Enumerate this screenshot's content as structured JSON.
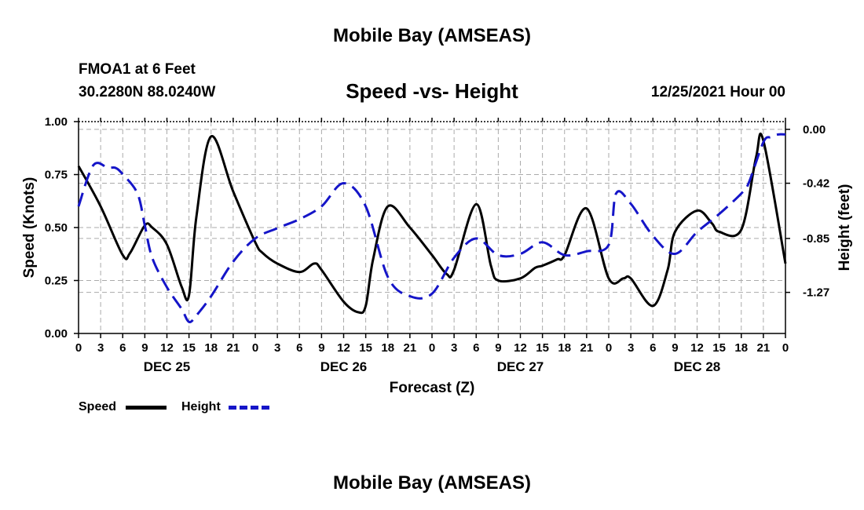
{
  "page": {
    "title": "Mobile Bay (AMSEAS)",
    "station": "FMOA1 at 6 Feet",
    "coords": "30.2280N  88.0240W",
    "chart_title": "Speed -vs- Height",
    "run_time": "12/25/2021 Hour 00",
    "legend": {
      "speed_label": "Speed",
      "height_label": "Height"
    },
    "footer_title": "Mobile Bay (AMSEAS)"
  },
  "colors": {
    "speed": "#000000",
    "height": "#1515c8",
    "grid": "#aaaaaa"
  },
  "chart_data": {
    "type": "line",
    "title": "Speed -vs- Height",
    "xlabel": "Forecast (Z)",
    "ylabel": "Speed (Knots)",
    "y2label": "Height (feet)",
    "xlim": [
      0,
      96
    ],
    "ylim": [
      0,
      1
    ],
    "y2lim": [
      -1.59,
      0.06
    ],
    "x_ticks": [
      0,
      3,
      6,
      9,
      12,
      15,
      18,
      21,
      24,
      27,
      30,
      33,
      36,
      39,
      42,
      45,
      48,
      51,
      54,
      57,
      60,
      63,
      66,
      69,
      72,
      75,
      78,
      81,
      84,
      87,
      90,
      93,
      96
    ],
    "x_tick_labels": [
      "0",
      "3",
      "6",
      "9",
      "12",
      "15",
      "18",
      "21",
      "0",
      "3",
      "6",
      "9",
      "12",
      "15",
      "18",
      "21",
      "0",
      "3",
      "6",
      "9",
      "12",
      "15",
      "18",
      "21",
      "0",
      "3",
      "6",
      "9",
      "12",
      "15",
      "18",
      "21",
      "0"
    ],
    "y_ticks": [
      0,
      0.25,
      0.5,
      0.75,
      1
    ],
    "y_tick_labels": [
      "0.00",
      "0.25",
      "0.50",
      "0.75",
      "1.00"
    ],
    "y2_ticks": [
      -1.27,
      -0.85,
      -0.42,
      0
    ],
    "y2_tick_labels": [
      "-1.27",
      "-0.85",
      "-0.42",
      "0.00"
    ],
    "day_labels": [
      {
        "x": 12,
        "label": "DEC 25"
      },
      {
        "x": 36,
        "label": "DEC 26"
      },
      {
        "x": 60,
        "label": "DEC 27"
      },
      {
        "x": 84,
        "label": "DEC 28"
      }
    ],
    "series": [
      {
        "name": "Speed",
        "axis": "left",
        "style": "solid",
        "x": [
          0,
          3,
          6,
          7,
          9,
          10,
          12,
          14,
          15,
          16,
          18,
          21,
          24,
          25,
          27,
          30,
          32,
          33,
          36,
          38,
          39,
          40,
          42,
          45,
          48,
          50,
          51,
          54,
          56,
          57,
          60,
          62,
          63,
          65,
          66,
          69,
          72,
          74,
          75,
          78,
          80,
          81,
          84,
          86,
          87,
          90,
          92,
          93,
          96
        ],
        "y": [
          0.79,
          0.6,
          0.37,
          0.38,
          0.51,
          0.5,
          0.42,
          0.22,
          0.18,
          0.55,
          0.93,
          0.67,
          0.43,
          0.38,
          0.33,
          0.29,
          0.33,
          0.3,
          0.15,
          0.1,
          0.13,
          0.35,
          0.6,
          0.5,
          0.37,
          0.28,
          0.3,
          0.61,
          0.32,
          0.25,
          0.26,
          0.31,
          0.32,
          0.35,
          0.37,
          0.59,
          0.26,
          0.26,
          0.26,
          0.13,
          0.3,
          0.48,
          0.58,
          0.52,
          0.48,
          0.49,
          0.83,
          0.91,
          0.33
        ]
      },
      {
        "name": "Height",
        "axis": "right",
        "style": "dashed",
        "x": [
          0,
          2,
          4,
          5,
          6,
          8,
          9,
          10,
          12,
          14,
          15,
          16,
          18,
          21,
          24,
          27,
          30,
          33,
          36,
          39,
          42,
          45,
          48,
          51,
          54,
          57,
          60,
          63,
          66,
          69,
          72,
          73,
          75,
          78,
          81,
          84,
          87,
          90,
          91,
          93,
          94,
          95,
          96
        ],
        "y": [
          -0.6,
          -0.28,
          -0.3,
          -0.3,
          -0.35,
          -0.5,
          -0.75,
          -1.0,
          -1.23,
          -1.4,
          -1.5,
          -1.45,
          -1.3,
          -1.03,
          -0.85,
          -0.77,
          -0.7,
          -0.6,
          -0.42,
          -0.6,
          -1.15,
          -1.3,
          -1.28,
          -1.0,
          -0.85,
          -0.98,
          -0.97,
          -0.88,
          -0.98,
          -0.95,
          -0.9,
          -0.5,
          -0.58,
          -0.83,
          -0.97,
          -0.8,
          -0.66,
          -0.5,
          -0.42,
          -0.1,
          -0.06,
          -0.04,
          -0.04
        ]
      }
    ]
  }
}
